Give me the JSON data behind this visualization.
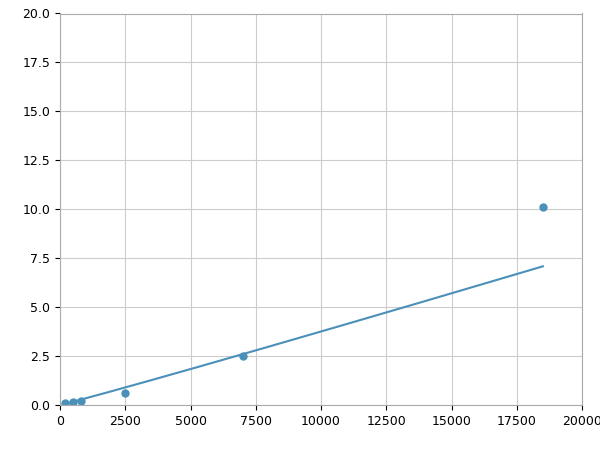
{
  "x": [
    200,
    500,
    800,
    2500,
    7000,
    18500
  ],
  "y": [
    0.1,
    0.17,
    0.2,
    0.6,
    2.5,
    10.1
  ],
  "line_color": "#4a90b8",
  "marker_color": "#4a90b8",
  "marker_size": 5,
  "line_width": 1.5,
  "xlim": [
    0,
    20000
  ],
  "ylim": [
    0,
    20
  ],
  "xticks": [
    0,
    2500,
    5000,
    7500,
    10000,
    12500,
    15000,
    17500,
    20000
  ],
  "yticks": [
    0.0,
    2.5,
    5.0,
    7.5,
    10.0,
    12.5,
    15.0,
    17.5,
    20.0
  ],
  "grid_color": "#cccccc",
  "background_color": "#ffffff",
  "fig_background": "#ffffff"
}
